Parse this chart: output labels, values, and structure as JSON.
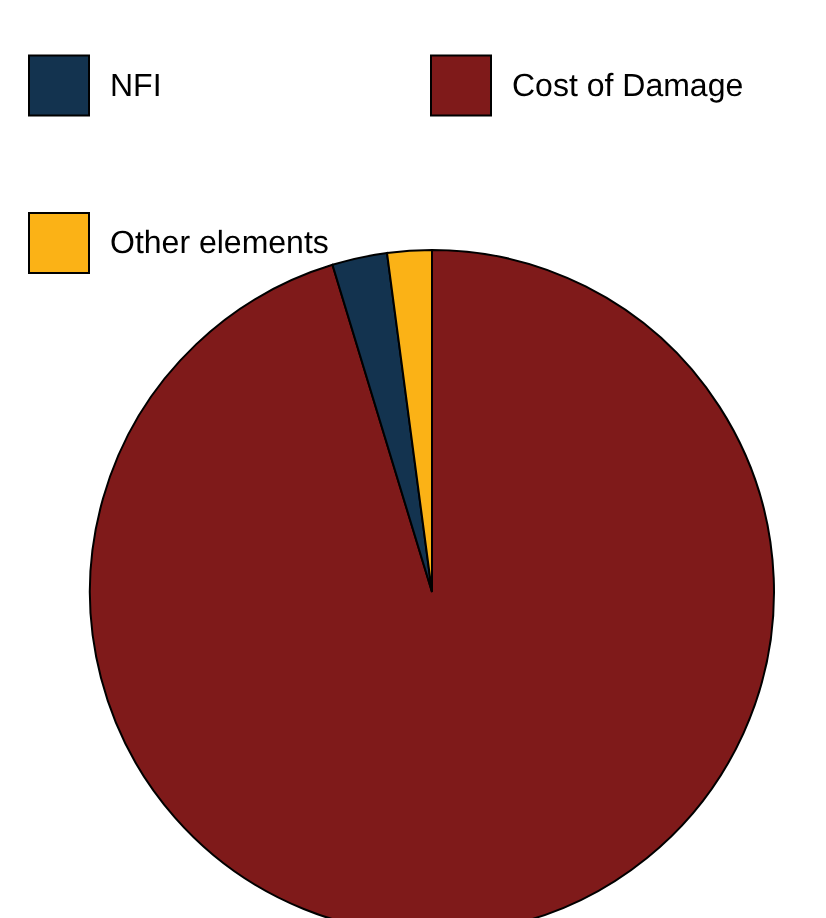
{
  "chart_data": {
    "type": "pie",
    "categories": [
      "Cost of Damage",
      "NFI",
      "Other elements"
    ],
    "values": [
      95.3,
      2.6,
      2.1
    ],
    "colors": [
      "#7f1a1a",
      "#13334f",
      "#fbb216"
    ],
    "legend": "top"
  }
}
